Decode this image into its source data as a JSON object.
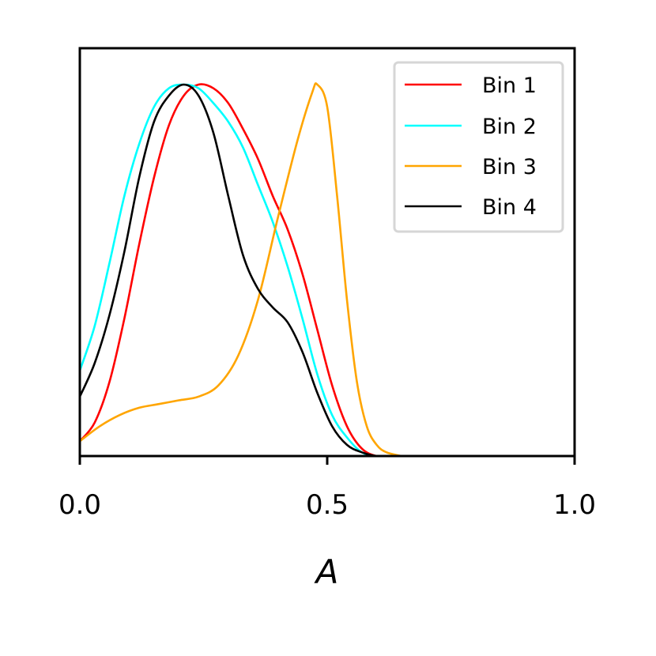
{
  "chart_data": {
    "type": "line",
    "title": "",
    "xlabel": "A",
    "ylabel": "",
    "xlim": [
      0.0,
      1.0
    ],
    "ylim": [
      0.0,
      1.0
    ],
    "x_ticks": [
      "0.0",
      "0.5",
      "1.0"
    ],
    "y_ticks_shown": false,
    "grid": false,
    "legend_position": "top-right",
    "series": [
      {
        "name": "Bin 1",
        "color": "#ff0000",
        "points": [
          [
            0.0,
            0.04
          ],
          [
            0.03,
            0.09
          ],
          [
            0.06,
            0.2
          ],
          [
            0.09,
            0.37
          ],
          [
            0.12,
            0.57
          ],
          [
            0.15,
            0.75
          ],
          [
            0.18,
            0.89
          ],
          [
            0.21,
            0.97
          ],
          [
            0.24,
            1.0
          ],
          [
            0.27,
            0.99
          ],
          [
            0.3,
            0.95
          ],
          [
            0.33,
            0.88
          ],
          [
            0.36,
            0.8
          ],
          [
            0.39,
            0.7
          ],
          [
            0.42,
            0.61
          ],
          [
            0.45,
            0.49
          ],
          [
            0.48,
            0.34
          ],
          [
            0.51,
            0.19
          ],
          [
            0.54,
            0.08
          ],
          [
            0.57,
            0.02
          ],
          [
            0.6,
            0.0
          ],
          [
            0.63,
            0.0
          ]
        ]
      },
      {
        "name": "Bin 2",
        "color": "#00ffff",
        "points": [
          [
            0.0,
            0.23
          ],
          [
            0.03,
            0.35
          ],
          [
            0.06,
            0.52
          ],
          [
            0.09,
            0.7
          ],
          [
            0.12,
            0.84
          ],
          [
            0.15,
            0.94
          ],
          [
            0.18,
            0.99
          ],
          [
            0.21,
            1.0
          ],
          [
            0.24,
            0.99
          ],
          [
            0.27,
            0.95
          ],
          [
            0.3,
            0.9
          ],
          [
            0.33,
            0.83
          ],
          [
            0.36,
            0.73
          ],
          [
            0.39,
            0.63
          ],
          [
            0.42,
            0.51
          ],
          [
            0.45,
            0.37
          ],
          [
            0.48,
            0.22
          ],
          [
            0.51,
            0.11
          ],
          [
            0.54,
            0.05
          ],
          [
            0.57,
            0.01
          ],
          [
            0.6,
            0.0
          ],
          [
            0.63,
            0.0
          ]
        ]
      },
      {
        "name": "Bin 3",
        "color": "#ffa500",
        "points": [
          [
            0.0,
            0.04
          ],
          [
            0.04,
            0.08
          ],
          [
            0.08,
            0.11
          ],
          [
            0.12,
            0.13
          ],
          [
            0.16,
            0.14
          ],
          [
            0.2,
            0.15
          ],
          [
            0.24,
            0.16
          ],
          [
            0.28,
            0.19
          ],
          [
            0.32,
            0.27
          ],
          [
            0.36,
            0.42
          ],
          [
            0.4,
            0.64
          ],
          [
            0.44,
            0.85
          ],
          [
            0.47,
            0.98
          ],
          [
            0.48,
            1.0
          ],
          [
            0.5,
            0.94
          ],
          [
            0.52,
            0.7
          ],
          [
            0.54,
            0.42
          ],
          [
            0.56,
            0.2
          ],
          [
            0.58,
            0.08
          ],
          [
            0.6,
            0.03
          ],
          [
            0.62,
            0.01
          ],
          [
            0.65,
            0.0
          ]
        ]
      },
      {
        "name": "Bin 4",
        "color": "#000000",
        "points": [
          [
            0.0,
            0.16
          ],
          [
            0.03,
            0.25
          ],
          [
            0.06,
            0.38
          ],
          [
            0.09,
            0.55
          ],
          [
            0.12,
            0.75
          ],
          [
            0.15,
            0.9
          ],
          [
            0.18,
            0.97
          ],
          [
            0.21,
            1.0
          ],
          [
            0.24,
            0.97
          ],
          [
            0.27,
            0.87
          ],
          [
            0.3,
            0.7
          ],
          [
            0.33,
            0.54
          ],
          [
            0.36,
            0.45
          ],
          [
            0.39,
            0.4
          ],
          [
            0.42,
            0.36
          ],
          [
            0.45,
            0.28
          ],
          [
            0.48,
            0.17
          ],
          [
            0.51,
            0.08
          ],
          [
            0.54,
            0.03
          ],
          [
            0.57,
            0.01
          ],
          [
            0.6,
            0.0
          ],
          [
            0.62,
            0.0
          ]
        ]
      }
    ]
  }
}
